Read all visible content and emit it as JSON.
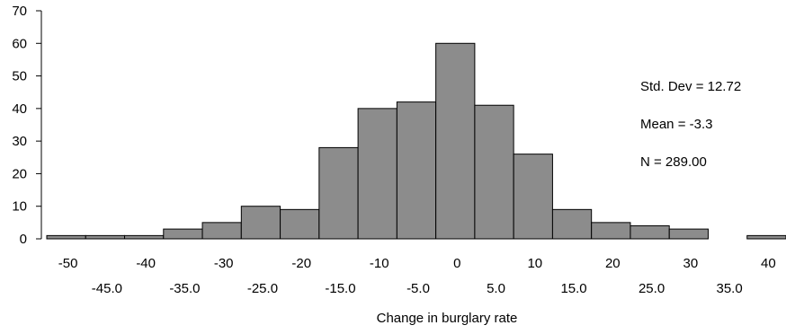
{
  "chart_data": {
    "type": "bar",
    "chart_subtype": "histogram",
    "xlabel": "Change in burglary rate",
    "ylabel": "",
    "title": "",
    "ylim": [
      0,
      70
    ],
    "y_ticks": [
      0,
      10,
      20,
      30,
      40,
      50,
      60,
      70
    ],
    "xlim": [
      -52.5,
      42.5
    ],
    "x_ticks_upper": [
      "-50",
      "-40",
      "-30",
      "-20",
      "-10",
      "0",
      "10",
      "20",
      "30",
      "40"
    ],
    "x_ticks_lower": [
      "-45.0",
      "-35.0",
      "-25.0",
      "-15.0",
      "-5.0",
      "5.0",
      "15.0",
      "25.0",
      "35.0"
    ],
    "bin_width": 5,
    "bins": [
      {
        "center": -50,
        "value": 1
      },
      {
        "center": -45,
        "value": 1
      },
      {
        "center": -40,
        "value": 1
      },
      {
        "center": -35,
        "value": 3
      },
      {
        "center": -30,
        "value": 5
      },
      {
        "center": -25,
        "value": 10
      },
      {
        "center": -20,
        "value": 9
      },
      {
        "center": -15,
        "value": 28
      },
      {
        "center": -10,
        "value": 40
      },
      {
        "center": -5,
        "value": 42
      },
      {
        "center": 0,
        "value": 60
      },
      {
        "center": 5,
        "value": 41
      },
      {
        "center": 10,
        "value": 26
      },
      {
        "center": 15,
        "value": 9
      },
      {
        "center": 20,
        "value": 5
      },
      {
        "center": 25,
        "value": 4
      },
      {
        "center": 30,
        "value": 3
      },
      {
        "center": 35,
        "value": 0
      },
      {
        "center": 40,
        "value": 1
      }
    ],
    "bar_color": "#8c8c8c",
    "stats": {
      "std_dev": "Std. Dev = 12.72",
      "mean": "Mean = -3.3",
      "n": "N = 289.00"
    },
    "grid": false
  }
}
